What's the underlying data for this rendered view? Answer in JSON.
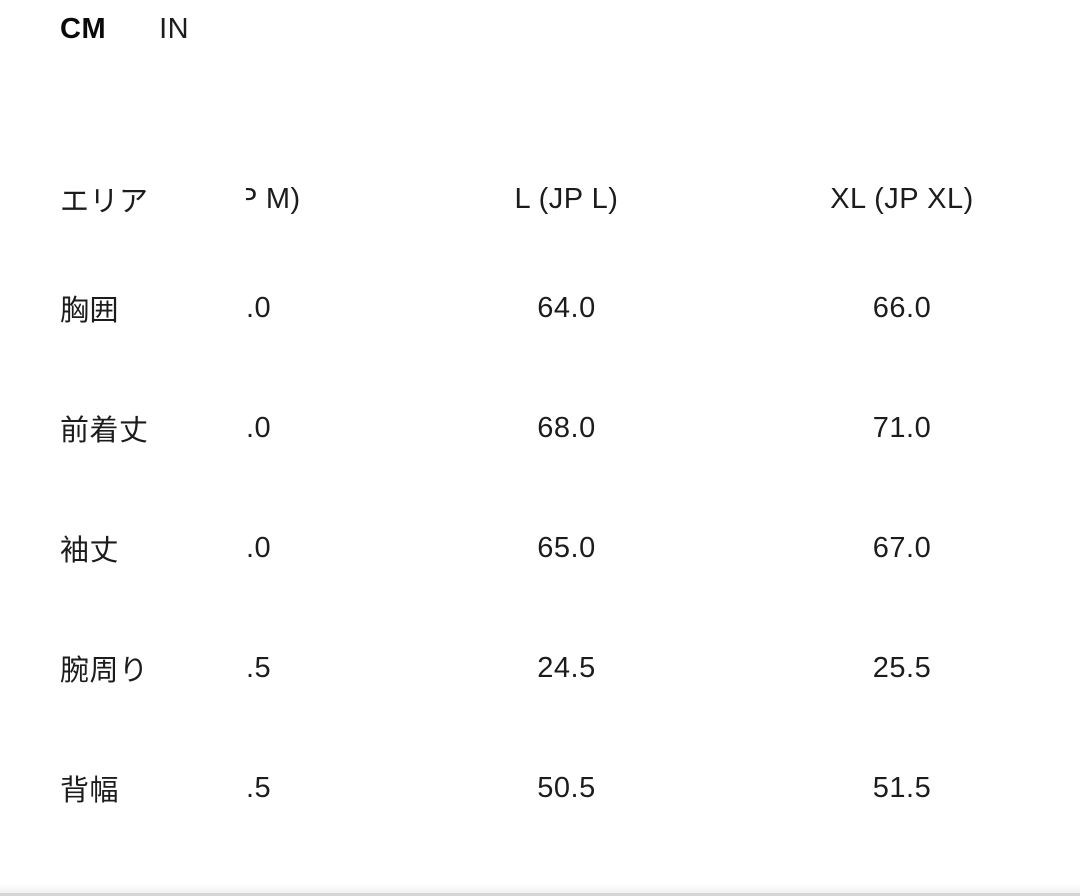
{
  "unit_toggle": {
    "cm_label": "CM",
    "in_label": "IN",
    "selected": "CM"
  },
  "size_chart": {
    "area_header": "エリア",
    "row_labels": [
      "胸囲",
      "前着丈",
      "袖丈",
      "腕周り",
      "背幅"
    ],
    "columns": [
      {
        "header_visible": "P M)",
        "values": [
          ".0",
          ".0",
          ".0",
          ".5",
          ".5"
        ]
      },
      {
        "header_visible": "L (JP L)",
        "values": [
          "64.0",
          "68.0",
          "65.0",
          "24.5",
          "50.5"
        ]
      },
      {
        "header_visible": "XL (JP XL)",
        "values": [
          "66.0",
          "71.0",
          "67.0",
          "25.5",
          "51.5"
        ]
      }
    ],
    "text_color": "#1c1c1c"
  }
}
